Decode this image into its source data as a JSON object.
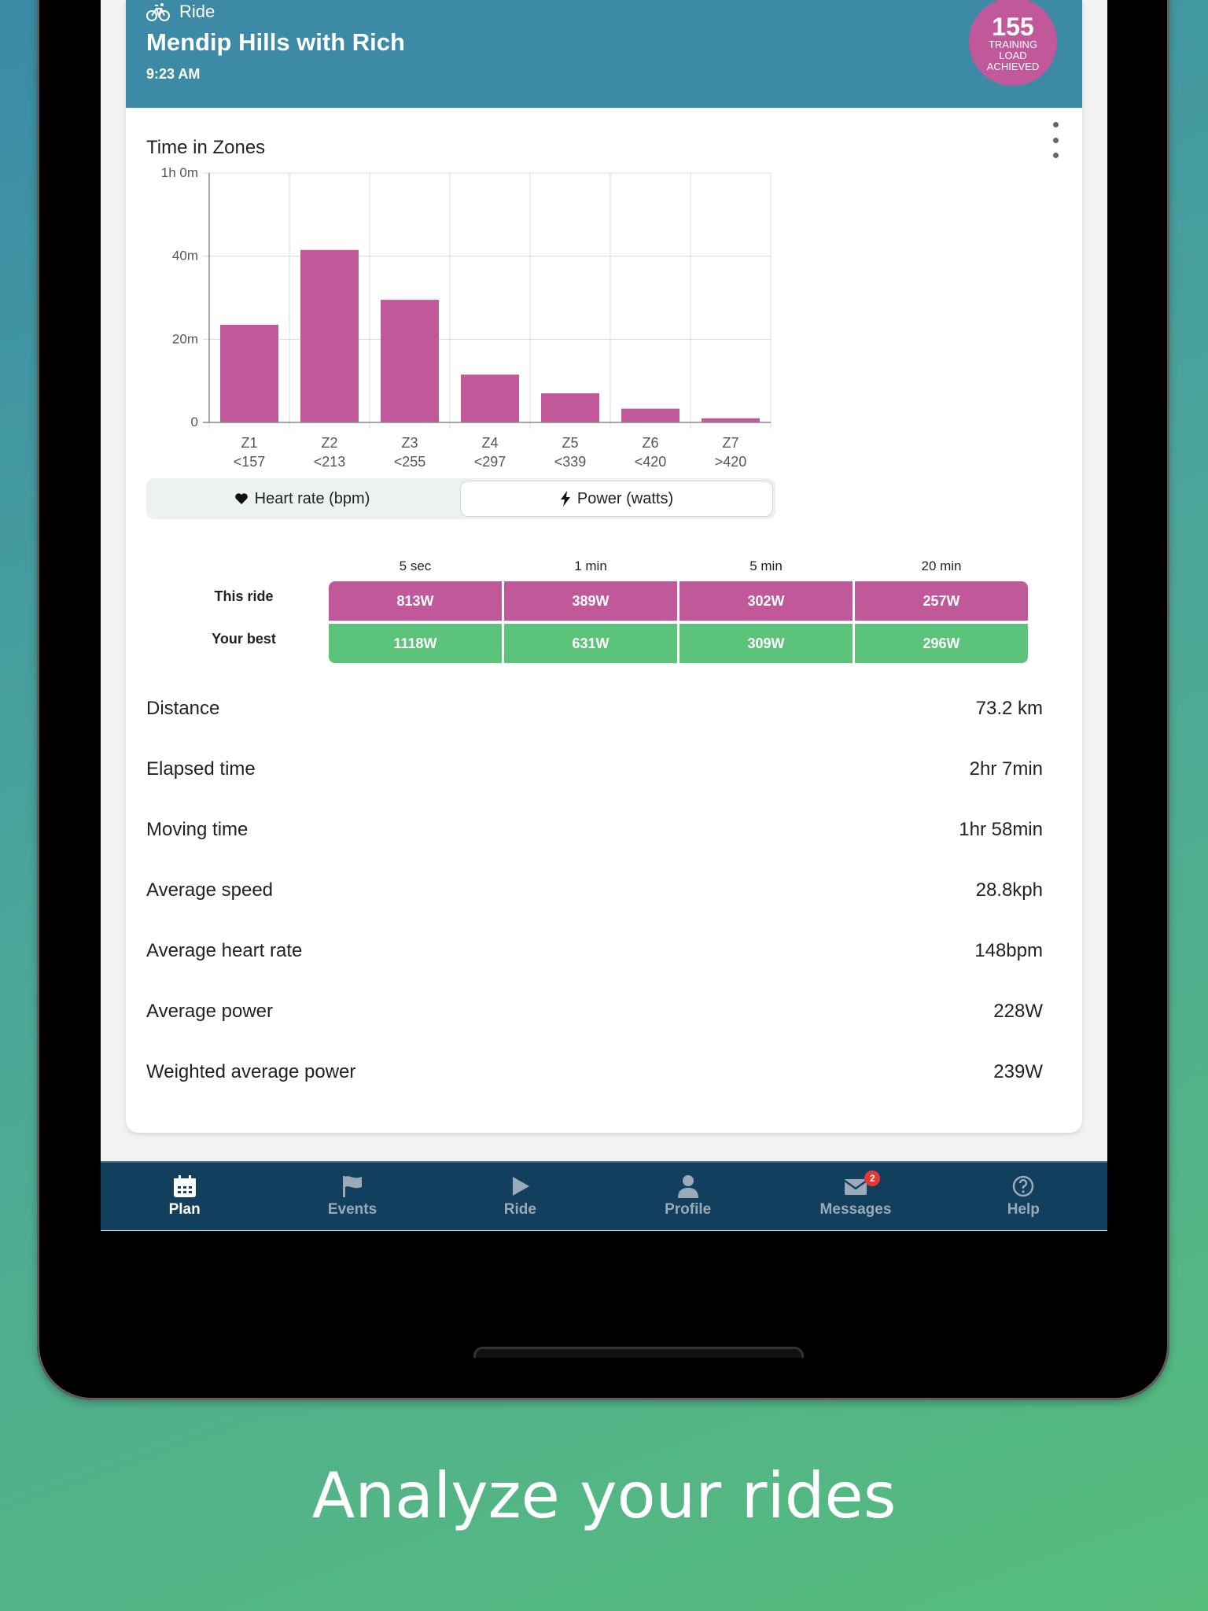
{
  "activity": {
    "type": "Ride",
    "title": "Mendip Hills with Rich",
    "time": "9:23 AM",
    "training_load": {
      "value": "155",
      "label": "TRAINING LOAD ACHIEVED"
    }
  },
  "zones_chart": {
    "title": "Time in Zones",
    "toggle": {
      "heart_rate": "Heart rate (bpm)",
      "power": "Power (watts)",
      "selected": "power"
    }
  },
  "chart_data": {
    "type": "bar",
    "title": "Time in Zones",
    "categories": [
      "Z1 <157",
      "Z2 <213",
      "Z3 <255",
      "Z4 <297",
      "Z5 <339",
      "Z6 <420",
      "Z7 >420"
    ],
    "zone_names": [
      "Z1",
      "Z2",
      "Z3",
      "Z4",
      "Z5",
      "Z6",
      "Z7"
    ],
    "zone_ranges": [
      "<157",
      "<213",
      "<255",
      "<297",
      "<339",
      "<420",
      ">420"
    ],
    "values": [
      23.5,
      41.5,
      29.5,
      11.5,
      7,
      3.3,
      1
    ],
    "unit": "minutes",
    "ylim": [
      0,
      60
    ],
    "yticks": [
      0,
      20,
      40,
      60
    ],
    "ytick_labels": [
      "0",
      "20m",
      "40m",
      "1h 0m"
    ],
    "grid": true,
    "color": "#c1589a"
  },
  "best_efforts": {
    "headers": [
      "5 sec",
      "1 min",
      "5 min",
      "20 min"
    ],
    "this_ride_label": "This ride",
    "your_best_label": "Your best",
    "this_ride": [
      "813W",
      "389W",
      "302W",
      "257W"
    ],
    "your_best": [
      "1118W",
      "631W",
      "309W",
      "296W"
    ],
    "colors": {
      "this_ride": "#c1589a",
      "your_best": "#5bc37a"
    }
  },
  "stats": [
    {
      "label": "Distance",
      "value": "73.2 km"
    },
    {
      "label": "Elapsed time",
      "value": "2hr 7min"
    },
    {
      "label": "Moving time",
      "value": "1hr 58min"
    },
    {
      "label": "Average speed",
      "value": "28.8kph"
    },
    {
      "label": "Average heart rate",
      "value": "148bpm"
    },
    {
      "label": "Average power",
      "value": "228W"
    },
    {
      "label": "Weighted average power",
      "value": "239W"
    }
  ],
  "nav": {
    "items": [
      {
        "label": "Plan",
        "icon": "calendar-icon",
        "active": true
      },
      {
        "label": "Events",
        "icon": "flag-icon"
      },
      {
        "label": "Ride",
        "icon": "play-icon"
      },
      {
        "label": "Profile",
        "icon": "person-icon"
      },
      {
        "label": "Messages",
        "icon": "mail-icon",
        "badge": "2"
      },
      {
        "label": "Help",
        "icon": "help-icon"
      }
    ]
  },
  "caption": "Analyze your rides"
}
